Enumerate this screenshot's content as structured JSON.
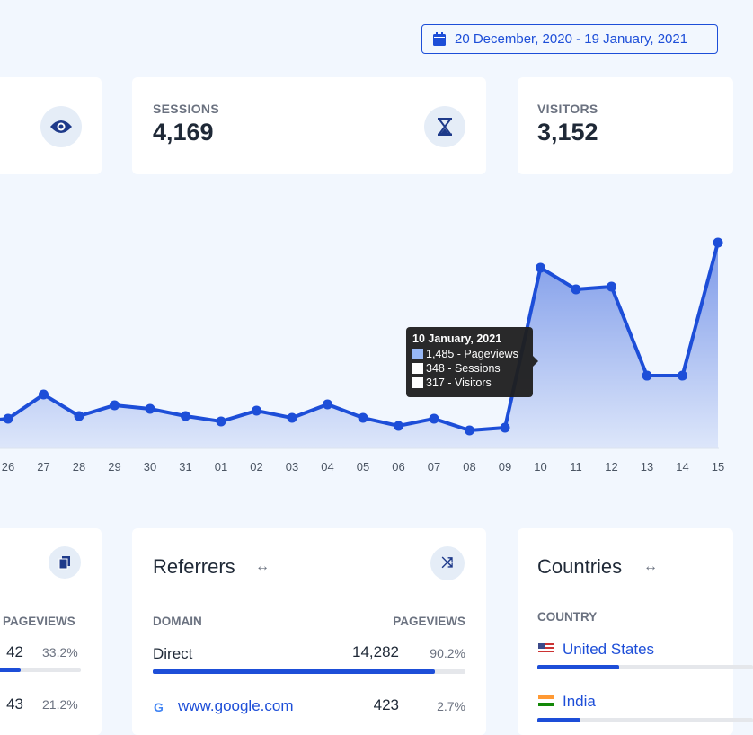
{
  "date_range": "20 December, 2020 - 19 January, 2021",
  "stats": [
    {
      "label": "SESSIONS",
      "value": "4,169",
      "icon": "hourglass-icon"
    },
    {
      "label": "VISITORS",
      "value": "3,152",
      "icon": "users-icon"
    }
  ],
  "chart_data": {
    "type": "area",
    "categories": [
      "26",
      "27",
      "28",
      "29",
      "30",
      "31",
      "01",
      "02",
      "03",
      "04",
      "05",
      "06",
      "07",
      "08",
      "09",
      "10",
      "11",
      "12",
      "13",
      "14",
      "15"
    ],
    "series": [
      {
        "name": "Pageviews",
        "values": [
          244,
          443,
          266,
          355,
          325,
          266,
          222,
          310,
          251,
          362,
          251,
          185,
          244,
          148,
          170,
          1485,
          1308,
          1330,
          598,
          598,
          1692
        ]
      }
    ],
    "color": "#1d4ed8"
  },
  "tooltip": {
    "title": "10 January, 2021",
    "rows": [
      "1,485 - Pageviews",
      "348 - Sessions",
      "317 - Visitors"
    ]
  },
  "pages_card": {
    "header": "PAGEVIEWS",
    "rows": [
      {
        "count": "42",
        "pct": "33.2%",
        "share": 33.2
      },
      {
        "count": "43",
        "pct": "21.2%",
        "share": 21.2
      }
    ]
  },
  "referrers": {
    "title": "Referrers",
    "col1": "DOMAIN",
    "col2": "PAGEVIEWS",
    "rows": [
      {
        "name": "Direct",
        "count": "14,282",
        "pct": "90.2%",
        "share": 90.2
      },
      {
        "name": "www.google.com",
        "count": "423",
        "pct": "2.7%",
        "share": 2.7
      }
    ]
  },
  "countries": {
    "title": "Countries",
    "col1": "COUNTRY",
    "rows": [
      {
        "name": "United States",
        "share": 30
      },
      {
        "name": "India",
        "share": 18
      }
    ]
  }
}
